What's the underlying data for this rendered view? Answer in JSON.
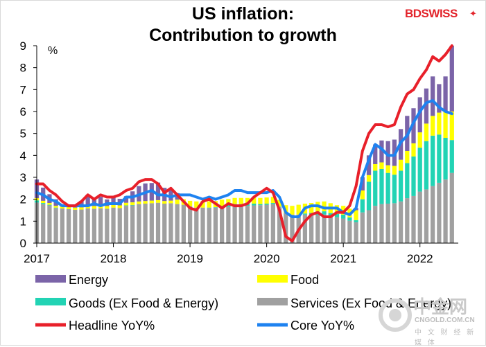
{
  "brand": {
    "name": "BDSWISS",
    "star": "✦"
  },
  "watermark": {
    "title": "中金网",
    "url": "CNGOLD.COM.CN",
    "subtitle": "中 文 财 经 新 媒 体"
  },
  "chart_data": {
    "type": "bar",
    "title_line1": "US inflation:",
    "title_line2": "Contribution to growth",
    "ylabel": "%",
    "ylim": [
      0,
      9
    ],
    "yticks": [
      "0",
      "1",
      "2",
      "3",
      "4",
      "5",
      "6",
      "7",
      "8",
      "9"
    ],
    "xlim": [
      2017.0,
      2022.5
    ],
    "xticks": [
      "2017",
      "2018",
      "2019",
      "2020",
      "2021",
      "2022"
    ],
    "colors": {
      "energy": "#7b64a8",
      "food": "#ffff00",
      "goods": "#22d3b4",
      "services": "#a0a0a0",
      "headline": "#e8202a",
      "core": "#1e82f0"
    },
    "legend": {
      "energy": "Energy",
      "food": "Food",
      "goods": "Goods (Ex Food & Energy)",
      "services": "Services (Ex Food & Energy)",
      "headline": "Headline YoY%",
      "core": "Core YoY%"
    },
    "months": [
      "Jan 2017",
      "Feb 2017",
      "Mar 2017",
      "Apr 2017",
      "May 2017",
      "Jun 2017",
      "Jul 2017",
      "Aug 2017",
      "Sep 2017",
      "Oct 2017",
      "Nov 2017",
      "Dec 2017",
      "Jan 2018",
      "Feb 2018",
      "Mar 2018",
      "Apr 2018",
      "May 2018",
      "Jun 2018",
      "Jul 2018",
      "Aug 2018",
      "Sep 2018",
      "Oct 2018",
      "Nov 2018",
      "Dec 2018",
      "Jan 2019",
      "Feb 2019",
      "Mar 2019",
      "Apr 2019",
      "May 2019",
      "Jun 2019",
      "Jul 2019",
      "Aug 2019",
      "Sep 2019",
      "Oct 2019",
      "Nov 2019",
      "Dec 2019",
      "Jan 2020",
      "Feb 2020",
      "Mar 2020",
      "Apr 2020",
      "May 2020",
      "Jun 2020",
      "Jul 2020",
      "Aug 2020",
      "Sep 2020",
      "Oct 2020",
      "Nov 2020",
      "Dec 2020",
      "Jan 2021",
      "Feb 2021",
      "Mar 2021",
      "Apr 2021",
      "May 2021",
      "Jun 2021",
      "Jul 2021",
      "Aug 2021",
      "Sep 2021",
      "Oct 2021",
      "Nov 2021",
      "Dec 2021",
      "Jan 2022",
      "Feb 2022",
      "Mar 2022",
      "Apr 2022",
      "May 2022",
      "Jun 2022"
    ],
    "series": [
      {
        "key": "services",
        "name": "Services (Ex Food & Energy)",
        "values": [
          1.85,
          1.78,
          1.72,
          1.6,
          1.58,
          1.55,
          1.52,
          1.53,
          1.58,
          1.57,
          1.59,
          1.57,
          1.62,
          1.6,
          1.7,
          1.72,
          1.78,
          1.8,
          1.82,
          1.84,
          1.8,
          1.82,
          1.78,
          1.75,
          1.68,
          1.62,
          1.62,
          1.6,
          1.62,
          1.65,
          1.65,
          1.68,
          1.68,
          1.7,
          1.72,
          1.73,
          1.75,
          1.78,
          1.65,
          1.38,
          1.3,
          1.3,
          1.3,
          1.28,
          1.28,
          1.3,
          1.22,
          1.18,
          1.12,
          1.02,
          0.95,
          1.4,
          1.5,
          1.7,
          1.78,
          1.8,
          1.82,
          1.9,
          2.05,
          2.15,
          2.35,
          2.45,
          2.6,
          2.75,
          2.9,
          3.2
        ]
      },
      {
        "key": "goods",
        "name": "Goods (Ex Food & Energy)",
        "values": [
          0.1,
          0.05,
          0.03,
          0.02,
          0.0,
          0.0,
          0.0,
          0.0,
          0.0,
          0.0,
          0.0,
          0.0,
          0.0,
          0.0,
          0.02,
          0.02,
          0.0,
          0.0,
          0.0,
          0.0,
          0.0,
          0.0,
          0.0,
          0.0,
          0.0,
          0.0,
          0.0,
          0.02,
          0.02,
          0.05,
          0.08,
          0.1,
          0.1,
          0.08,
          0.08,
          0.05,
          0.05,
          0.05,
          0.02,
          0.0,
          0.0,
          0.0,
          0.05,
          0.1,
          0.15,
          0.15,
          0.15,
          0.15,
          0.18,
          0.15,
          0.1,
          0.6,
          1.3,
          1.6,
          1.6,
          1.4,
          1.3,
          1.4,
          1.6,
          1.8,
          2.0,
          2.2,
          2.3,
          2.2,
          1.9,
          1.5
        ]
      },
      {
        "key": "food",
        "name": "Food",
        "values": [
          0.1,
          0.1,
          0.08,
          0.08,
          0.08,
          0.1,
          0.1,
          0.1,
          0.12,
          0.12,
          0.12,
          0.12,
          0.12,
          0.12,
          0.12,
          0.12,
          0.12,
          0.12,
          0.12,
          0.12,
          0.12,
          0.12,
          0.2,
          0.25,
          0.25,
          0.28,
          0.3,
          0.28,
          0.28,
          0.28,
          0.28,
          0.28,
          0.28,
          0.28,
          0.28,
          0.28,
          0.28,
          0.28,
          0.3,
          0.35,
          0.4,
          0.45,
          0.45,
          0.45,
          0.45,
          0.45,
          0.45,
          0.4,
          0.4,
          0.4,
          0.45,
          0.4,
          0.3,
          0.3,
          0.3,
          0.35,
          0.4,
          0.5,
          0.55,
          0.6,
          0.7,
          0.8,
          0.9,
          1.0,
          1.2,
          1.3
        ]
      },
      {
        "key": "energy",
        "name": "Energy",
        "values": [
          0.85,
          0.6,
          0.4,
          0.3,
          0.1,
          0.05,
          0.1,
          0.3,
          0.5,
          0.3,
          0.4,
          0.3,
          0.4,
          0.3,
          0.3,
          0.5,
          0.7,
          0.8,
          0.8,
          0.8,
          0.6,
          0.5,
          0.3,
          0.0,
          0.0,
          0.0,
          0.0,
          0.0,
          0.0,
          0.0,
          0.0,
          0.0,
          0.0,
          0.0,
          0.0,
          0.0,
          0.0,
          0.0,
          0.0,
          0.0,
          0.0,
          0.0,
          0.0,
          0.0,
          0.0,
          0.0,
          0.0,
          0.0,
          0.0,
          0.0,
          0.1,
          0.6,
          0.9,
          0.9,
          1.0,
          1.1,
          1.2,
          1.4,
          1.6,
          1.6,
          1.6,
          1.6,
          1.8,
          1.3,
          1.6,
          3.0
        ]
      },
      {
        "key": "energy_neg",
        "name": "Energy (negative)",
        "values": [
          0,
          0,
          0,
          0,
          0,
          0,
          0,
          0,
          0,
          0,
          0,
          0,
          0,
          0,
          0,
          0,
          0,
          0,
          0,
          0,
          0,
          0,
          0,
          0,
          -0.05,
          -0.1,
          -0.05,
          0,
          0,
          -0.05,
          -0.1,
          -0.1,
          -0.1,
          -0.05,
          0,
          0,
          0,
          0,
          -0.1,
          -0.3,
          -0.4,
          -0.35,
          -0.2,
          -0.15,
          -0.15,
          -0.15,
          -0.15,
          -0.15,
          -0.1,
          -0.05,
          0,
          0,
          0,
          0,
          0,
          0,
          0,
          0,
          0,
          0,
          0,
          0,
          0,
          0,
          0,
          0
        ]
      },
      {
        "key": "headline",
        "name": "Headline YoY%",
        "type": "line",
        "values": [
          2.7,
          2.7,
          2.4,
          2.2,
          1.9,
          1.7,
          1.7,
          1.9,
          2.2,
          2.0,
          2.2,
          2.1,
          2.1,
          2.2,
          2.4,
          2.5,
          2.8,
          2.9,
          2.9,
          2.7,
          2.3,
          2.5,
          2.2,
          1.9,
          1.6,
          1.5,
          1.9,
          2.0,
          1.8,
          1.6,
          1.8,
          1.7,
          1.7,
          1.8,
          2.1,
          2.3,
          2.5,
          2.3,
          1.5,
          0.3,
          0.1,
          0.6,
          1.0,
          1.3,
          1.4,
          1.2,
          1.2,
          1.4,
          1.4,
          1.7,
          2.6,
          4.2,
          5.0,
          5.4,
          5.4,
          5.3,
          5.4,
          6.2,
          6.8,
          7.0,
          7.5,
          7.9,
          8.5,
          8.3,
          8.6,
          9.0
        ]
      },
      {
        "key": "core",
        "name": "Core YoY%",
        "type": "line",
        "values": [
          2.3,
          2.2,
          2.0,
          1.9,
          1.7,
          1.7,
          1.7,
          1.7,
          1.7,
          1.8,
          1.7,
          1.8,
          1.8,
          1.8,
          2.1,
          2.1,
          2.2,
          2.3,
          2.4,
          2.2,
          2.2,
          2.1,
          2.2,
          2.2,
          2.2,
          2.1,
          2.0,
          2.1,
          2.0,
          2.1,
          2.2,
          2.4,
          2.4,
          2.3,
          2.3,
          2.3,
          2.3,
          2.4,
          2.1,
          1.4,
          1.2,
          1.2,
          1.6,
          1.7,
          1.7,
          1.6,
          1.6,
          1.6,
          1.4,
          1.3,
          1.6,
          3.0,
          3.8,
          4.5,
          4.3,
          4.0,
          4.0,
          4.6,
          4.9,
          5.5,
          6.0,
          6.4,
          6.5,
          6.2,
          6.0,
          5.9
        ]
      }
    ]
  }
}
